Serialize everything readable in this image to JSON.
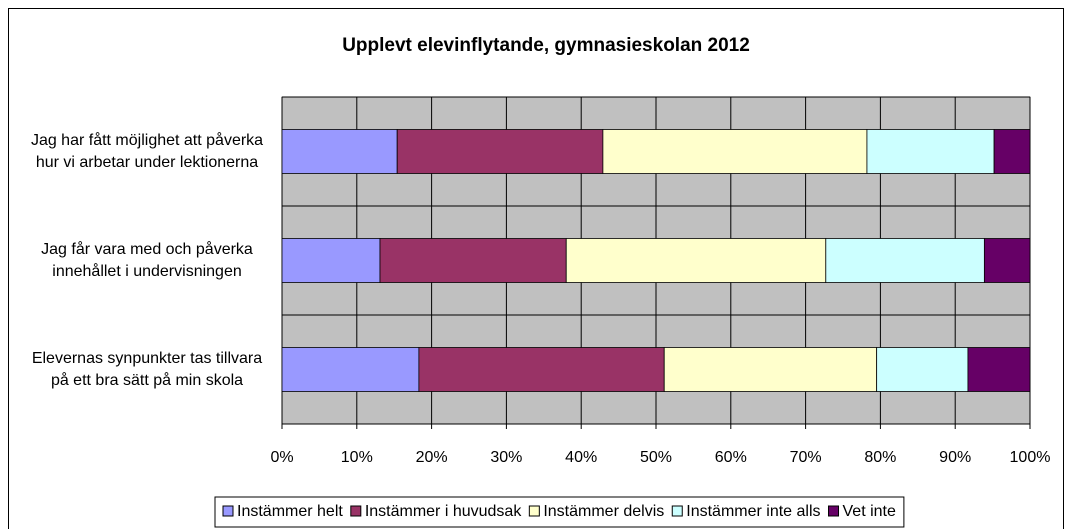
{
  "chart_data": {
    "type": "stacked-bar-horizontal",
    "title": "Upplevt elevinflytande, gymnasieskolan 2012",
    "categories": [
      "Jag har fått möjlighet att påverka hur vi arbetar under lektionerna",
      "Jag får vara med och påverka innehållet i undervisningen",
      "Elevernas synpunkter tas tillvara på ett bra sätt på min skola"
    ],
    "series": [
      {
        "name": "Instämmer helt",
        "color": "#9999ff",
        "values": [
          15.4,
          13.1,
          18.3
        ]
      },
      {
        "name": "Instämmer i huvudsak",
        "color": "#993366",
        "values": [
          27.5,
          24.9,
          32.8
        ]
      },
      {
        "name": "Instämmer delvis",
        "color": "#ffffcc",
        "values": [
          35.3,
          34.7,
          28.4
        ]
      },
      {
        "name": "Instämmer inte alls",
        "color": "#ccffff",
        "values": [
          17.0,
          21.2,
          12.2
        ]
      },
      {
        "name": "Vet inte",
        "color": "#660066",
        "values": [
          4.8,
          6.1,
          8.3
        ]
      }
    ],
    "xlim": [
      0,
      100
    ],
    "xticks": [
      {
        "value": 0,
        "label": "0%"
      },
      {
        "value": 10,
        "label": "10%"
      },
      {
        "value": 20,
        "label": "20%"
      },
      {
        "value": 30,
        "label": "30%"
      },
      {
        "value": 40,
        "label": "40%"
      },
      {
        "value": 50,
        "label": "50%"
      },
      {
        "value": 60,
        "label": "60%"
      },
      {
        "value": 70,
        "label": "70%"
      },
      {
        "value": 80,
        "label": "80%"
      },
      {
        "value": 90,
        "label": "90%"
      },
      {
        "value": 100,
        "label": "100%"
      }
    ],
    "grid": true,
    "legend": "bottom"
  }
}
